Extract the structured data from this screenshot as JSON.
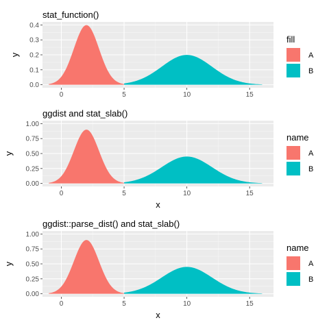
{
  "chart_data": [
    {
      "type": "area",
      "title": "stat_function()",
      "xlabel": "",
      "ylabel": "y",
      "xlim": [
        -1.5,
        16.9
      ],
      "ylim": [
        -0.02,
        0.42
      ],
      "x_ticks": [
        0,
        5,
        10,
        15
      ],
      "x_tick_labels": [
        "0",
        "5",
        "10",
        "15"
      ],
      "y_ticks": [
        0,
        0.1,
        0.2,
        0.3,
        0.4
      ],
      "y_tick_labels": [
        "0.0",
        "0.1",
        "0.2",
        "0.3",
        "0.4"
      ],
      "grid": true,
      "legend": {
        "title": "fill",
        "position": "right",
        "entries": [
          "A",
          "B"
        ]
      },
      "series": [
        {
          "name": "A",
          "distribution": "normal",
          "mean": 2,
          "sd": 1,
          "x_range": [
            -1,
            5
          ],
          "peak": 0.3989,
          "color": "#F8766D"
        },
        {
          "name": "B",
          "distribution": "normal",
          "mean": 10,
          "sd": 2,
          "x_range": [
            5,
            16
          ],
          "peak": 0.1995,
          "color": "#00BFC4"
        }
      ]
    },
    {
      "type": "area",
      "title": "ggdist and stat_slab()",
      "xlabel": "x",
      "ylabel": "y",
      "xlim": [
        -1.5,
        16.9
      ],
      "ylim": [
        -0.05,
        1.05
      ],
      "x_ticks": [
        0,
        5,
        10,
        15
      ],
      "x_tick_labels": [
        "0",
        "5",
        "10",
        "15"
      ],
      "y_ticks": [
        0,
        0.25,
        0.5,
        0.75,
        1.0
      ],
      "y_tick_labels": [
        "0.00",
        "0.25",
        "0.50",
        "0.75",
        "1.00"
      ],
      "grid": true,
      "legend": {
        "title": "name",
        "position": "right",
        "entries": [
          "A",
          "B"
        ]
      },
      "series": [
        {
          "name": "A",
          "distribution": "normal",
          "mean": 2,
          "sd": 1,
          "x_range": [
            -1,
            5
          ],
          "peak": 0.9,
          "color": "#F8766D"
        },
        {
          "name": "B",
          "distribution": "normal",
          "mean": 10,
          "sd": 2,
          "x_range": [
            5,
            16
          ],
          "peak": 0.45,
          "color": "#00BFC4"
        }
      ]
    },
    {
      "type": "area",
      "title": "ggdist::parse_dist() and stat_slab()",
      "xlabel": "x",
      "ylabel": "y",
      "xlim": [
        -1.5,
        16.9
      ],
      "ylim": [
        -0.05,
        1.05
      ],
      "x_ticks": [
        0,
        5,
        10,
        15
      ],
      "x_tick_labels": [
        "0",
        "5",
        "10",
        "15"
      ],
      "y_ticks": [
        0,
        0.25,
        0.5,
        0.75,
        1.0
      ],
      "y_tick_labels": [
        "0.00",
        "0.25",
        "0.50",
        "0.75",
        "1.00"
      ],
      "grid": true,
      "legend": {
        "title": "name",
        "position": "right",
        "entries": [
          "A",
          "B"
        ]
      },
      "series": [
        {
          "name": "A",
          "distribution": "normal",
          "mean": 2,
          "sd": 1,
          "x_range": [
            -1,
            5
          ],
          "peak": 0.9,
          "color": "#F8766D"
        },
        {
          "name": "B",
          "distribution": "normal",
          "mean": 10,
          "sd": 2,
          "x_range": [
            5,
            16
          ],
          "peak": 0.45,
          "color": "#00BFC4"
        }
      ]
    }
  ],
  "colors": {
    "panel_background": "#EBEBEB",
    "grid_major": "#FFFFFF",
    "grid_minor": "#F5F5F5",
    "tick_color": "#333333"
  }
}
